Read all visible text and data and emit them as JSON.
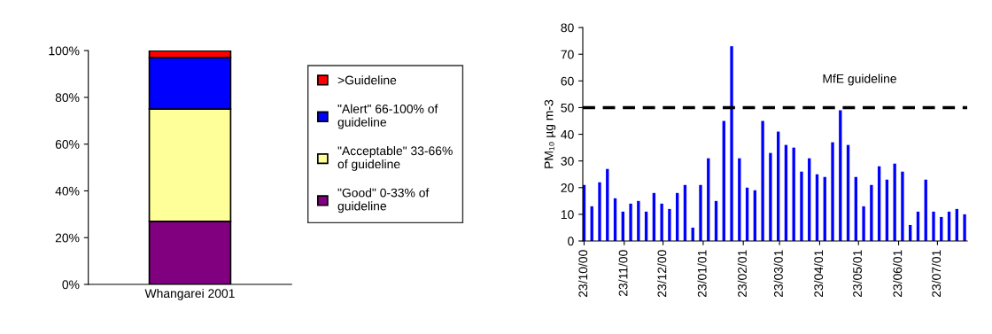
{
  "chart_data": [
    {
      "type": "bar",
      "stacked": true,
      "categories": [
        "Whangarei 2001"
      ],
      "ylim": [
        0,
        100
      ],
      "yticks": [
        {
          "value": 0,
          "label": "0%"
        },
        {
          "value": 20,
          "label": "20%"
        },
        {
          "value": 40,
          "label": "40%"
        },
        {
          "value": 60,
          "label": "60%"
        },
        {
          "value": 80,
          "label": "80%"
        },
        {
          "value": 100,
          "label": "100%"
        }
      ],
      "series": [
        {
          "name": "\"Good\" 0-33% of\nguideline",
          "color": "#800080",
          "values": [
            27
          ]
        },
        {
          "name": "\"Acceptable\" 33-66%\nof guideline",
          "color": "#ffff99",
          "values": [
            48
          ]
        },
        {
          "name": "\"Alert\" 66-100% of\nguideline",
          "color": "#0000ff",
          "values": [
            22
          ]
        },
        {
          "name": ">Guideline",
          "color": "#ff0000",
          "values": [
            3
          ]
        }
      ],
      "legend": "right",
      "grid": false
    },
    {
      "type": "bar",
      "ylabel": "PM₁₀ µg m-3",
      "ylim": [
        0,
        80
      ],
      "yticks": [
        0,
        10,
        20,
        30,
        40,
        50,
        60,
        70,
        80
      ],
      "xlim": [
        "2000-10-22",
        "2001-08-15"
      ],
      "xticks": [
        {
          "value": "2000-10-23",
          "label": "23/10/00"
        },
        {
          "value": "2000-11-23",
          "label": "23/11/00"
        },
        {
          "value": "2000-12-23",
          "label": "23/12/00"
        },
        {
          "value": "2001-01-23",
          "label": "23/01/01"
        },
        {
          "value": "2001-02-23",
          "label": "23/02/01"
        },
        {
          "value": "2001-03-23",
          "label": "23/03/01"
        },
        {
          "value": "2001-04-23",
          "label": "23/04/01"
        },
        {
          "value": "2001-05-23",
          "label": "23/05/01"
        },
        {
          "value": "2001-06-23",
          "label": "23/06/01"
        },
        {
          "value": "2001-07-23",
          "label": "23/07/01"
        }
      ],
      "x": [
        "2000-10-23",
        "2000-10-29",
        "2000-11-04",
        "2000-11-10",
        "2000-11-16",
        "2000-11-22",
        "2000-11-28",
        "2000-12-04",
        "2000-12-10",
        "2000-12-16",
        "2000-12-22",
        "2000-12-28",
        "2001-01-03",
        "2001-01-09",
        "2001-01-15",
        "2001-01-21",
        "2001-01-27",
        "2001-02-02",
        "2001-02-08",
        "2001-02-14",
        "2001-02-20",
        "2001-02-26",
        "2001-03-04",
        "2001-03-10",
        "2001-03-16",
        "2001-03-22",
        "2001-03-28",
        "2001-04-03",
        "2001-04-09",
        "2001-04-15",
        "2001-04-21",
        "2001-04-27",
        "2001-05-03",
        "2001-05-09",
        "2001-05-15",
        "2001-05-21",
        "2001-05-27",
        "2001-06-02",
        "2001-06-08",
        "2001-06-14",
        "2001-06-20",
        "2001-06-26",
        "2001-07-02",
        "2001-07-08",
        "2001-07-14",
        "2001-07-20",
        "2001-07-26",
        "2001-08-01",
        "2001-08-07",
        "2001-08-13"
      ],
      "series": [
        {
          "color": "#0000ff",
          "values": [
            21,
            13,
            22,
            27,
            16,
            11,
            14,
            15,
            11,
            18,
            14,
            12,
            18,
            21,
            5,
            21,
            31,
            15,
            45,
            73,
            31,
            20,
            19,
            45,
            33,
            41,
            36,
            35,
            26,
            31,
            25,
            24,
            37,
            49,
            36,
            24,
            13,
            21,
            28,
            23,
            29,
            26,
            6,
            11,
            23,
            11,
            9,
            11,
            12,
            10
          ]
        }
      ],
      "ref_lines": [
        {
          "axis": "y",
          "value": 50,
          "label": "MfE guideline",
          "color": "#000000",
          "line_style": "dashed"
        }
      ],
      "legend": false,
      "grid": false
    }
  ]
}
